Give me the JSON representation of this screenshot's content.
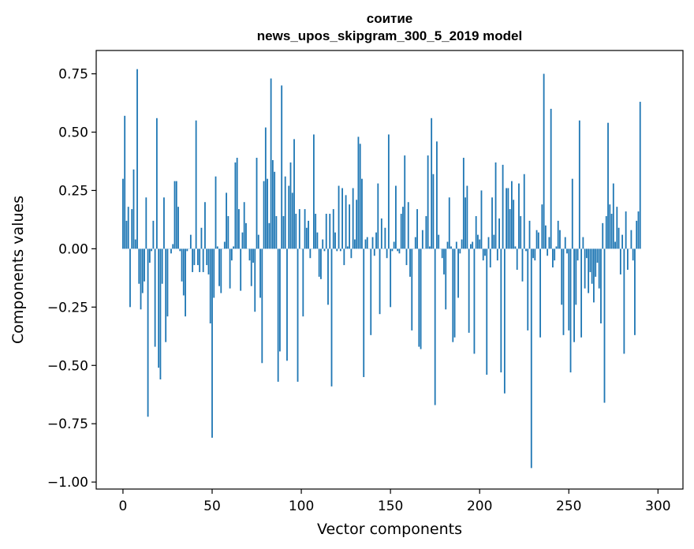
{
  "chart_data": {
    "type": "bar",
    "title_line1": "соитие",
    "title_line2": "news_upos_skipgram_300_5_2019 model",
    "xlabel": "Vector components",
    "ylabel": "Components values",
    "xlim": [
      -15,
      314
    ],
    "ylim": [
      -1.03,
      0.85
    ],
    "xticks": [
      0,
      50,
      100,
      150,
      200,
      250,
      300
    ],
    "xtick_labels": [
      "0",
      "50",
      "100",
      "150",
      "200",
      "250",
      "300"
    ],
    "yticks": [
      -1.0,
      -0.75,
      -0.5,
      -0.25,
      0.0,
      0.25,
      0.5,
      0.75
    ],
    "ytick_labels": [
      "−1.00",
      "−0.75",
      "−0.50",
      "−0.25",
      "0.00",
      "0.25",
      "0.50",
      "0.75"
    ],
    "bar_color": "#1f77b4",
    "values": [
      0.3,
      0.57,
      0.12,
      0.18,
      -0.25,
      0.17,
      0.34,
      0.04,
      0.77,
      -0.15,
      -0.26,
      -0.19,
      -0.14,
      0.22,
      -0.72,
      -0.06,
      -0.01,
      0.12,
      -0.42,
      0.56,
      -0.51,
      -0.56,
      -0.15,
      0.22,
      -0.4,
      -0.29,
      0.0,
      -0.02,
      0.02,
      0.29,
      0.29,
      0.18,
      -0.01,
      -0.14,
      -0.2,
      -0.29,
      -0.01,
      0.0,
      0.06,
      -0.1,
      -0.07,
      0.55,
      -0.07,
      -0.1,
      0.09,
      -0.1,
      0.2,
      -0.07,
      -0.11,
      -0.32,
      -0.81,
      -0.21,
      0.31,
      0.01,
      -0.16,
      -0.19,
      0.0,
      0.03,
      0.24,
      0.14,
      -0.17,
      -0.05,
      0.01,
      0.37,
      0.39,
      0.17,
      -0.18,
      0.07,
      0.2,
      0.11,
      0.0,
      -0.05,
      -0.16,
      -0.06,
      -0.27,
      0.39,
      0.06,
      -0.21,
      -0.49,
      0.29,
      0.52,
      0.3,
      0.11,
      0.73,
      0.38,
      0.33,
      0.14,
      -0.57,
      -0.44,
      0.7,
      0.14,
      0.31,
      -0.48,
      0.27,
      0.37,
      0.24,
      0.47,
      0.15,
      -0.57,
      0.17,
      0.0,
      -0.29,
      0.17,
      0.09,
      0.12,
      -0.04,
      0.0,
      0.49,
      0.15,
      0.07,
      -0.12,
      -0.13,
      0.04,
      -0.01,
      0.15,
      -0.24,
      0.15,
      -0.59,
      0.17,
      0.07,
      -0.01,
      0.27,
      -0.01,
      0.26,
      -0.07,
      0.23,
      0.01,
      0.19,
      -0.04,
      0.26,
      0.04,
      0.21,
      0.48,
      0.45,
      0.3,
      -0.55,
      0.04,
      0.05,
      0.0,
      -0.37,
      0.05,
      -0.03,
      0.07,
      0.28,
      -0.28,
      0.13,
      0.0,
      0.09,
      -0.04,
      0.49,
      -0.25,
      -0.01,
      0.03,
      0.27,
      -0.01,
      -0.02,
      0.15,
      0.18,
      0.4,
      -0.07,
      0.2,
      -0.12,
      -0.35,
      0.0,
      0.05,
      0.17,
      -0.42,
      -0.43,
      0.08,
      0.0,
      0.14,
      0.4,
      0.01,
      0.56,
      0.32,
      -0.67,
      0.46,
      0.06,
      0.0,
      -0.04,
      -0.11,
      -0.26,
      0.03,
      0.22,
      0.01,
      -0.4,
      -0.38,
      0.03,
      -0.21,
      -0.02,
      0.04,
      0.39,
      0.22,
      0.27,
      -0.36,
      0.02,
      0.03,
      -0.45,
      0.14,
      0.06,
      0.04,
      0.25,
      -0.05,
      -0.03,
      -0.54,
      0.05,
      -0.08,
      0.22,
      0.06,
      0.37,
      -0.05,
      0.13,
      -0.53,
      0.36,
      -0.62,
      0.26,
      0.26,
      0.17,
      0.29,
      0.21,
      0.01,
      -0.09,
      0.28,
      0.14,
      -0.14,
      0.32,
      -0.01,
      -0.35,
      0.12,
      -0.94,
      -0.04,
      -0.05,
      0.08,
      0.07,
      -0.38,
      0.19,
      0.75,
      0.1,
      -0.03,
      0.05,
      0.6,
      -0.08,
      -0.05,
      0.01,
      0.12,
      0.08,
      -0.24,
      -0.37,
      0.05,
      -0.02,
      -0.35,
      -0.53,
      0.3,
      -0.4,
      -0.24,
      -0.05,
      0.55,
      -0.38,
      0.05,
      -0.17,
      -0.04,
      -0.19,
      -0.1,
      -0.15,
      -0.23,
      -0.12,
      -0.06,
      -0.17,
      -0.32,
      0.11,
      -0.66,
      0.14,
      0.54,
      0.19,
      0.15,
      0.28,
      0.03,
      0.18,
      0.09,
      -0.11,
      0.06,
      -0.45,
      0.16,
      -0.09,
      0.0,
      0.08,
      -0.05,
      -0.37,
      0.12,
      0.16,
      0.63
    ]
  }
}
